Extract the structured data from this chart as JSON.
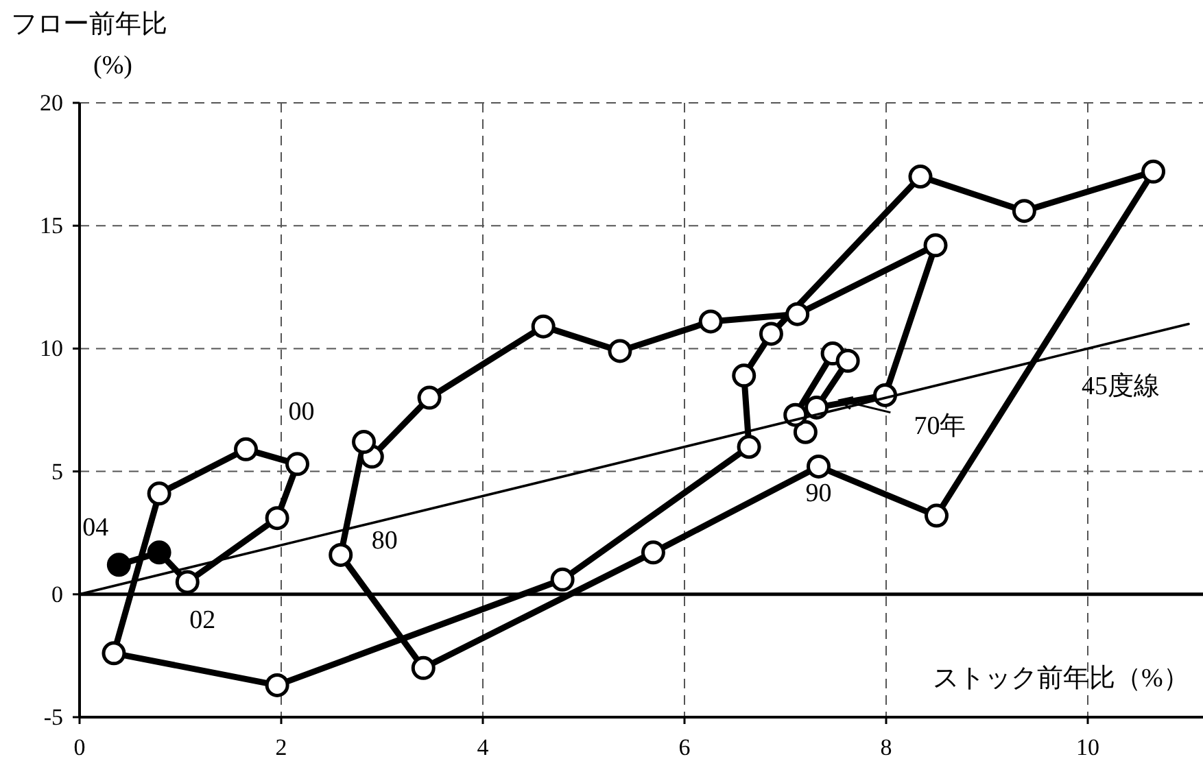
{
  "chart_data": {
    "type": "line",
    "xlabel": "ストック前年比（%）",
    "ylabel": "フロー前年比\n(%)",
    "xlim": [
      0,
      11.14
    ],
    "ylim": [
      -5,
      20
    ],
    "xticks": [
      0,
      2,
      4,
      6,
      8,
      10
    ],
    "yticks": [
      -5,
      0,
      5,
      10,
      15,
      20
    ],
    "grid": true,
    "marker": "circle",
    "line_style": "solid",
    "series": [
      {
        "color": "#000000",
        "x": [
          7.2,
          7.1,
          7.47,
          7.62,
          7.31,
          7.99,
          8.49,
          7.12,
          6.26,
          5.36,
          4.6,
          3.47,
          2.9,
          2.82,
          2.59,
          3.41,
          5.69,
          7.33,
          8.5,
          10.65,
          9.37,
          8.34,
          6.86,
          6.59,
          6.64,
          4.79,
          1.96,
          0.34,
          0.79,
          1.65,
          2.16,
          1.96,
          1.07,
          0.79,
          0.39
        ],
        "values": [
          6.6,
          7.3,
          9.8,
          9.5,
          7.6,
          8.1,
          14.2,
          11.4,
          11.1,
          9.9,
          10.9,
          8.0,
          5.6,
          6.2,
          1.6,
          -3.0,
          1.7,
          5.2,
          3.2,
          17.2,
          15.6,
          17.0,
          10.6,
          8.9,
          6.0,
          0.6,
          -3.7,
          -2.4,
          4.1,
          5.9,
          5.3,
          3.1,
          0.5,
          1.7,
          1.2
        ],
        "colors": [
          "#ffffff",
          "#ffffff",
          "#ffffff",
          "#ffffff",
          "#ffffff",
          "#ffffff",
          "#ffffff",
          "#ffffff",
          "#ffffff",
          "#ffffff",
          "#ffffff",
          "#ffffff",
          "#ffffff",
          "#ffffff",
          "#ffffff",
          "#ffffff",
          "#ffffff",
          "#ffffff",
          "#ffffff",
          "#ffffff",
          "#ffffff",
          "#ffffff",
          "#ffffff",
          "#ffffff",
          "#ffffff",
          "#ffffff",
          "#ffffff",
          "#ffffff",
          "#ffffff",
          "#ffffff",
          "#ffffff",
          "#ffffff",
          "#ffffff",
          "#000000",
          "#000000"
        ]
      },
      {
        "type": "line",
        "color": "#000000",
        "marker": "none",
        "x": [
          0,
          11
        ],
        "values": [
          0,
          11
        ]
      }
    ],
    "ref_lines": [
      {
        "axis": "y",
        "value": 0,
        "label": null,
        "color": "#000000"
      }
    ],
    "annotations": [
      {
        "text": "70年",
        "x": 7.54,
        "y": 7.9
      },
      {
        "text": "80",
        "x": 2.59,
        "y": 1.6
      },
      {
        "text": "90",
        "x": 7.33,
        "y": 5.2
      },
      {
        "text": "00",
        "x": 2.16,
        "y": 5.3
      },
      {
        "text": "02",
        "x": 1.07,
        "y": 0.5
      },
      {
        "text": "04",
        "x": 0.39,
        "y": 1.2
      },
      {
        "text": "45度線",
        "x": 10,
        "y": 10
      }
    ]
  }
}
